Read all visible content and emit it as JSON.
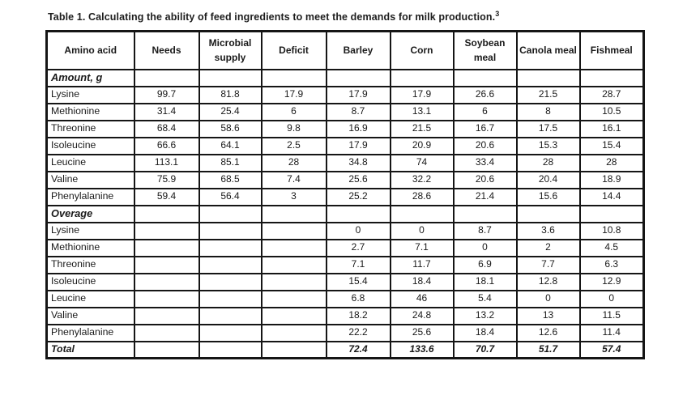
{
  "title": {
    "text": "Table 1. Calculating the ability of feed ingredients to meet the demands for milk production.",
    "superscript": "3"
  },
  "colors": {
    "background": "#ffffff",
    "text": "#1a1a1a",
    "border": "#151515"
  },
  "table": {
    "columns": [
      "Amino acid",
      "Needs",
      "Microbial supply",
      "Deficit",
      "Barley",
      "Corn",
      "Soybean meal",
      "Canola meal",
      "Fishmeal"
    ],
    "sections": [
      {
        "header": "Amount, g",
        "rows": [
          {
            "label": "Lysine",
            "values": [
              "99.7",
              "81.8",
              "17.9",
              "17.9",
              "17.9",
              "26.6",
              "21.5",
              "28.7"
            ]
          },
          {
            "label": "Methionine",
            "values": [
              "31.4",
              "25.4",
              "6",
              "8.7",
              "13.1",
              "6",
              "8",
              "10.5"
            ]
          },
          {
            "label": "Threonine",
            "values": [
              "68.4",
              "58.6",
              "9.8",
              "16.9",
              "21.5",
              "16.7",
              "17.5",
              "16.1"
            ]
          },
          {
            "label": "Isoleucine",
            "values": [
              "66.6",
              "64.1",
              "2.5",
              "17.9",
              "20.9",
              "20.6",
              "15.3",
              "15.4"
            ]
          },
          {
            "label": "Leucine",
            "values": [
              "113.1",
              "85.1",
              "28",
              "34.8",
              "74",
              "33.4",
              "28",
              "28"
            ]
          },
          {
            "label": "Valine",
            "values": [
              "75.9",
              "68.5",
              "7.4",
              "25.6",
              "32.2",
              "20.6",
              "20.4",
              "18.9"
            ]
          },
          {
            "label": "Phenylalanine",
            "values": [
              "59.4",
              "56.4",
              "3",
              "25.2",
              "28.6",
              "21.4",
              "15.6",
              "14.4"
            ]
          }
        ]
      },
      {
        "header": "Overage",
        "rows": [
          {
            "label": "Lysine",
            "values": [
              "",
              "",
              "",
              "0",
              "0",
              "8.7",
              "3.6",
              "10.8"
            ]
          },
          {
            "label": "Methionine",
            "values": [
              "",
              "",
              "",
              "2.7",
              "7.1",
              "0",
              "2",
              "4.5"
            ]
          },
          {
            "label": "Threonine",
            "values": [
              "",
              "",
              "",
              "7.1",
              "11.7",
              "6.9",
              "7.7",
              "6.3"
            ]
          },
          {
            "label": "Isoleucine",
            "values": [
              "",
              "",
              "",
              "15.4",
              "18.4",
              "18.1",
              "12.8",
              "12.9"
            ]
          },
          {
            "label": "Leucine",
            "values": [
              "",
              "",
              "",
              "6.8",
              "46",
              "5.4",
              "0",
              "0"
            ]
          },
          {
            "label": "Valine",
            "values": [
              "",
              "",
              "",
              "18.2",
              "24.8",
              "13.2",
              "13",
              "11.5"
            ]
          },
          {
            "label": "Phenylalanine",
            "values": [
              "",
              "",
              "",
              "22.2",
              "25.6",
              "18.4",
              "12.6",
              "11.4"
            ]
          }
        ]
      }
    ],
    "total_row": {
      "label": "Total",
      "values": [
        "",
        "",
        "",
        "72.4",
        "133.6",
        "70.7",
        "51.7",
        "57.4"
      ]
    }
  }
}
